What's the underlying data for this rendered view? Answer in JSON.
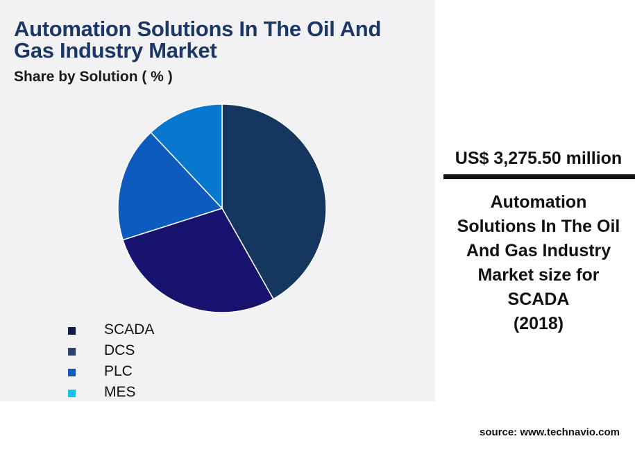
{
  "title": "Automation Solutions In The Oil And Gas Industry Market",
  "subtitle": "Share by Solution ( % )",
  "kpi": {
    "value": "US$ 3,275.50 million",
    "caption_lines": [
      "Automation",
      "Solutions In The Oil",
      "And Gas Industry",
      "Market size for",
      "SCADA",
      "(2018)"
    ]
  },
  "source": "source: www.technavio.com",
  "chart_data": {
    "type": "pie",
    "categories": [
      "SCADA",
      "DCS",
      "PLC",
      "MES"
    ],
    "legend_colors": [
      "#0f1f4a",
      "#2d4170",
      "#0e5bb5",
      "#16c0e6"
    ],
    "slices": [
      {
        "value": 41.8,
        "color": "#15365f"
      },
      {
        "value": 28.3,
        "color": "#17136e"
      },
      {
        "value": 17.9,
        "color": "#0e5bc0"
      },
      {
        "value": 12.0,
        "color": "#0877cf"
      }
    ],
    "start_angle_deg": 90,
    "direction": "clockwise",
    "legend_position": "bottom-left"
  }
}
